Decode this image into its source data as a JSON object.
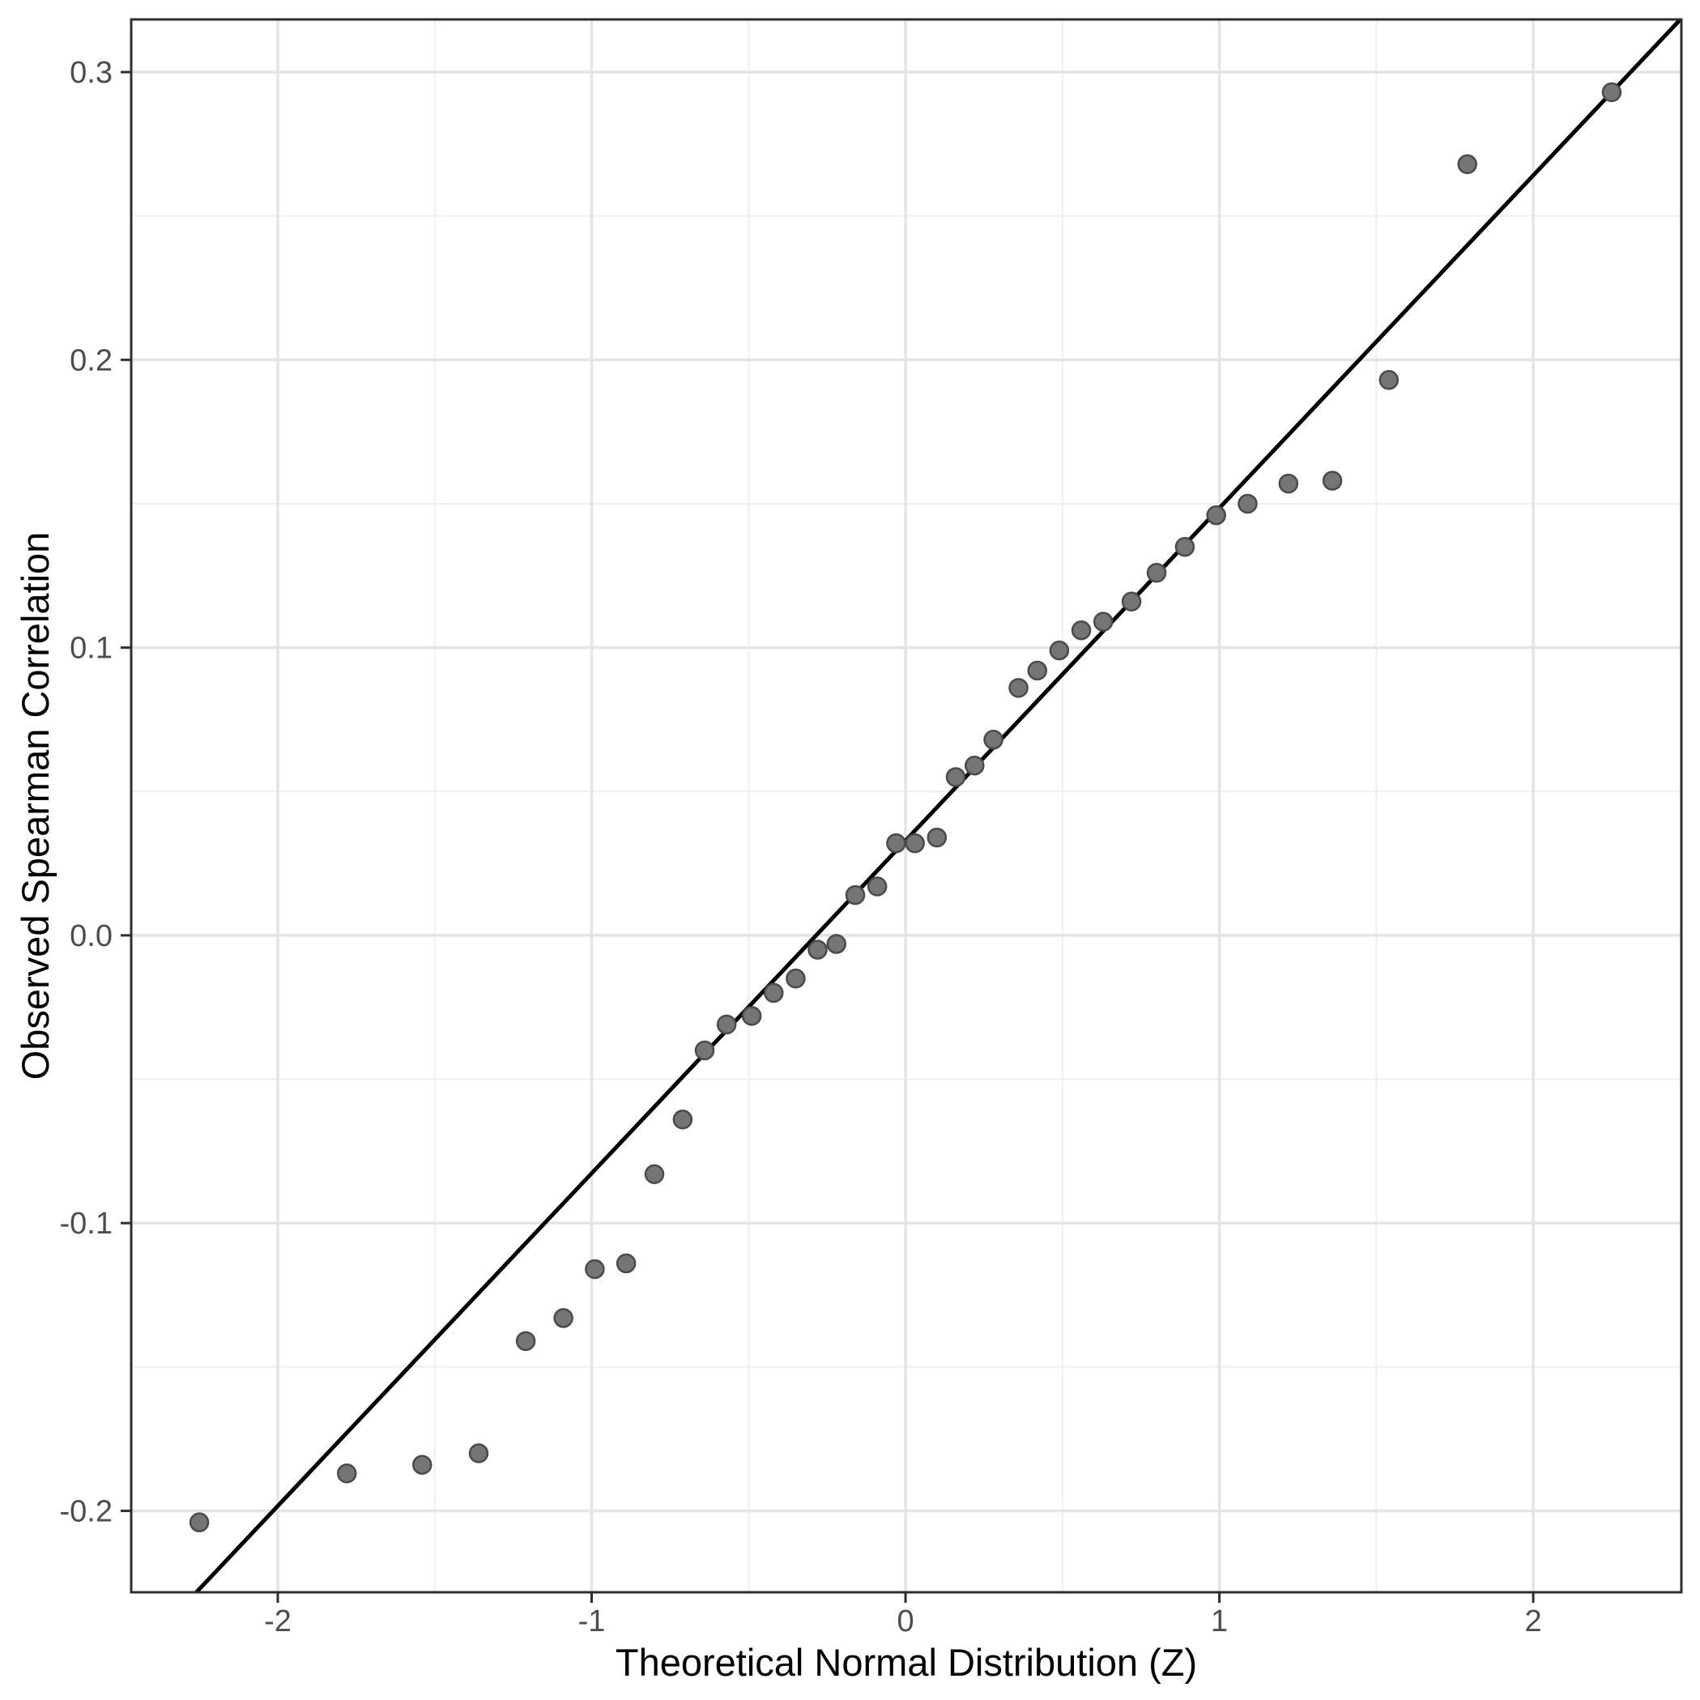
{
  "chart_data": {
    "type": "scatter",
    "title": "",
    "xlabel": "Theoretical Normal Distribution (Z)",
    "ylabel": "Observed Spearman Correlation",
    "xlim": [
      -2.467,
      2.472
    ],
    "ylim": [
      -0.2283,
      0.3183
    ],
    "grid": "major+minor",
    "legend": "none",
    "x_ticks": [
      {
        "v": -2,
        "label": "-2"
      },
      {
        "v": -1,
        "label": "-1"
      },
      {
        "v": 0,
        "label": "0"
      },
      {
        "v": 1,
        "label": "1"
      },
      {
        "v": 2,
        "label": "2"
      }
    ],
    "x_minor": [
      -1.5,
      -0.5,
      0.5,
      1.5
    ],
    "y_ticks": [
      {
        "v": 0.3,
        "label": "0.3"
      },
      {
        "v": 0.2,
        "label": "0.2"
      },
      {
        "v": 0.1,
        "label": "0.1"
      },
      {
        "v": 0.0,
        "label": "0.0"
      },
      {
        "v": -0.1,
        "label": "-0.1"
      },
      {
        "v": -0.2,
        "label": "-0.2"
      }
    ],
    "y_minor": [
      0.25,
      0.15,
      0.05,
      -0.05,
      -0.15
    ],
    "reference_line": {
      "slope": 0.1156,
      "intercept": 0.0329
    },
    "points": [
      [
        -2.25,
        -0.204
      ],
      [
        -1.78,
        -0.187
      ],
      [
        -1.54,
        -0.184
      ],
      [
        -1.36,
        -0.18
      ],
      [
        -1.21,
        -0.141
      ],
      [
        -1.09,
        -0.133
      ],
      [
        -0.99,
        -0.116
      ],
      [
        -0.89,
        -0.114
      ],
      [
        -0.8,
        -0.083
      ],
      [
        -0.71,
        -0.064
      ],
      [
        -0.64,
        -0.04
      ],
      [
        -0.57,
        -0.031
      ],
      [
        -0.49,
        -0.028
      ],
      [
        -0.42,
        -0.02
      ],
      [
        -0.35,
        -0.015
      ],
      [
        -0.28,
        -0.005
      ],
      [
        -0.22,
        -0.003
      ],
      [
        -0.16,
        0.014
      ],
      [
        -0.09,
        0.017
      ],
      [
        -0.03,
        0.032
      ],
      [
        0.03,
        0.032
      ],
      [
        0.1,
        0.034
      ],
      [
        0.16,
        0.055
      ],
      [
        0.22,
        0.059
      ],
      [
        0.28,
        0.068
      ],
      [
        0.36,
        0.086
      ],
      [
        0.42,
        0.092
      ],
      [
        0.49,
        0.099
      ],
      [
        0.56,
        0.106
      ],
      [
        0.63,
        0.109
      ],
      [
        0.72,
        0.116
      ],
      [
        0.8,
        0.126
      ],
      [
        0.89,
        0.135
      ],
      [
        0.99,
        0.146
      ],
      [
        1.09,
        0.15
      ],
      [
        1.22,
        0.157
      ],
      [
        1.36,
        0.158
      ],
      [
        1.54,
        0.193
      ],
      [
        1.79,
        0.268
      ],
      [
        2.25,
        0.293
      ]
    ],
    "colors": {
      "background": "#ffffff",
      "panel_background": "#ffffff",
      "panel_border": "#2e2e2e",
      "grid_major": "#e4e4e4",
      "grid_minor": "#efefef",
      "tick_mark": "#2e2e2e",
      "tick_label": "#4d4d4d",
      "axis_title": "#000000",
      "reference_line": "#000000",
      "point_fill": "#757575",
      "point_stroke": "#4a4a4a"
    },
    "point_radius": 11
  }
}
